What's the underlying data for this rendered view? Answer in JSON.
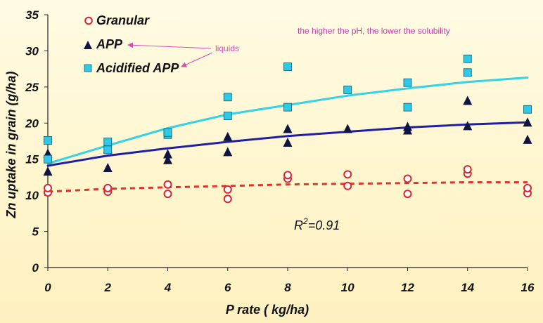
{
  "chart_data": {
    "type": "scatter",
    "title": "",
    "xlabel": "P rate ( kg/ha)",
    "ylabel": "Zn uptake in grain (g/ha)",
    "xlim": [
      0,
      16
    ],
    "ylim": [
      0,
      35
    ],
    "x_ticks": [
      0,
      2,
      4,
      6,
      8,
      10,
      12,
      14,
      16
    ],
    "y_ticks": [
      0,
      5,
      10,
      15,
      20,
      25,
      30,
      35
    ],
    "series": [
      {
        "name": "Granular",
        "marker": "open-circle",
        "color": "#d9262c",
        "points": [
          [
            0,
            10.4
          ],
          [
            0,
            11.0
          ],
          [
            2,
            10.5
          ],
          [
            2,
            11.0
          ],
          [
            4,
            10.2
          ],
          [
            4,
            11.5
          ],
          [
            6,
            9.5
          ],
          [
            6,
            10.8
          ],
          [
            8,
            12.3
          ],
          [
            8,
            12.8
          ],
          [
            10,
            11.3
          ],
          [
            10,
            12.9
          ],
          [
            12,
            10.2
          ],
          [
            12,
            12.3
          ],
          [
            14,
            13.0
          ],
          [
            14,
            13.6
          ],
          [
            16,
            10.3
          ],
          [
            16,
            11.0
          ]
        ],
        "trend": [
          [
            0,
            10.5
          ],
          [
            2,
            10.9
          ],
          [
            4,
            11.1
          ],
          [
            6,
            11.3
          ],
          [
            8,
            11.5
          ],
          [
            10,
            11.6
          ],
          [
            12,
            11.7
          ],
          [
            14,
            11.8
          ],
          [
            16,
            11.8
          ]
        ]
      },
      {
        "name": "APP",
        "marker": "filled-triangle",
        "color": "#0f1440",
        "points": [
          [
            0,
            13.2
          ],
          [
            0,
            15.7
          ],
          [
            2,
            13.7
          ],
          [
            2,
            16.3
          ],
          [
            4,
            14.8
          ],
          [
            4,
            15.6
          ],
          [
            6,
            15.9
          ],
          [
            6,
            18.0
          ],
          [
            8,
            17.2
          ],
          [
            8,
            19.1
          ],
          [
            10,
            19.1
          ],
          [
            12,
            18.9
          ],
          [
            12,
            19.4
          ],
          [
            14,
            19.5
          ],
          [
            14,
            23.0
          ],
          [
            16,
            17.6
          ],
          [
            16,
            20.0
          ]
        ],
        "trend": [
          [
            0,
            14.1
          ],
          [
            2,
            15.5
          ],
          [
            4,
            16.5
          ],
          [
            6,
            17.4
          ],
          [
            8,
            18.2
          ],
          [
            10,
            18.8
          ],
          [
            12,
            19.4
          ],
          [
            14,
            19.8
          ],
          [
            16,
            20.1
          ]
        ]
      },
      {
        "name": "Acidified APP",
        "marker": "filled-square",
        "color": "#2ec8e8",
        "points": [
          [
            0,
            15.0
          ],
          [
            0,
            17.6
          ],
          [
            2,
            16.3
          ],
          [
            2,
            17.4
          ],
          [
            4,
            18.4
          ],
          [
            4,
            18.7
          ],
          [
            6,
            21.0
          ],
          [
            6,
            23.6
          ],
          [
            8,
            22.2
          ],
          [
            8,
            27.8
          ],
          [
            10,
            24.6
          ],
          [
            12,
            22.2
          ],
          [
            12,
            25.6
          ],
          [
            14,
            27.0
          ],
          [
            14,
            28.9
          ],
          [
            16,
            21.9
          ]
        ],
        "trend": [
          [
            0,
            14.4
          ],
          [
            2,
            16.9
          ],
          [
            4,
            19.3
          ],
          [
            6,
            21.2
          ],
          [
            8,
            22.5
          ],
          [
            10,
            23.8
          ],
          [
            12,
            24.8
          ],
          [
            14,
            25.7
          ],
          [
            16,
            26.3
          ]
        ]
      }
    ],
    "legend": [
      "Granular",
      "APP",
      "Acidified APP"
    ],
    "legend_position": "top-left",
    "annotations": {
      "liquids": "liquids",
      "solubility_note": "the higher the pH, the lower the solubility",
      "r2_base": "R",
      "r2_sup": "2",
      "r2_value": "=0.91"
    }
  }
}
